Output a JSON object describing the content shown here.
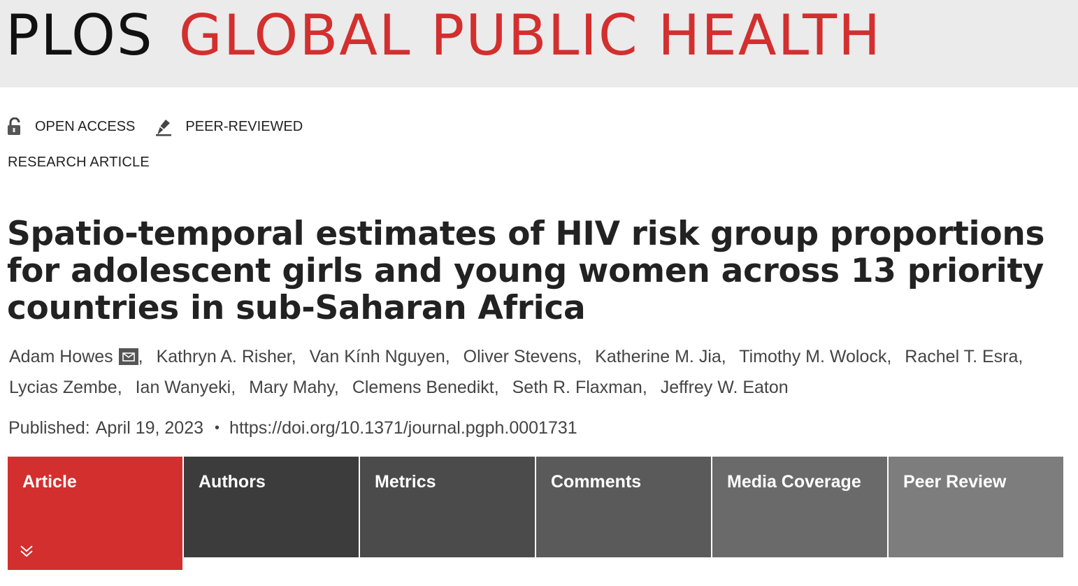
{
  "header": {
    "brand_plos": "PLOS",
    "brand_journal": "GLOBAL PUBLIC HEALTH"
  },
  "badges": [
    {
      "label": "OPEN ACCESS",
      "icon": "open-lock-icon"
    },
    {
      "label": "PEER-REVIEWED",
      "icon": "pen-nib-icon"
    }
  ],
  "article_type": "RESEARCH ARTICLE",
  "title": "Spatio-temporal estimates of HIV risk group proportions for adolescent girls and young women across 13 priority countries in sub-Saharan Africa",
  "authors": [
    "Adam Howes",
    "Kathryn A. Risher",
    "Van Kính Nguyen",
    "Oliver Stevens",
    "Katherine M. Jia",
    "Timothy M. Wolock",
    "Rachel T. Esra",
    "Lycias Zembe",
    "Ian Wanyeki",
    "Mary Mahy",
    "Clemens Benedikt",
    "Seth R. Flaxman",
    "Jeffrey W. Eaton"
  ],
  "published": {
    "label": "Published:",
    "date": "April 19, 2023",
    "bullet": "•",
    "doi": "https://doi.org/10.1371/journal.pgph.0001731"
  },
  "tabs": [
    {
      "label": "Article",
      "active": true
    },
    {
      "label": "Authors"
    },
    {
      "label": "Metrics"
    },
    {
      "label": "Comments"
    },
    {
      "label": "Media Coverage"
    },
    {
      "label": "Peer Review"
    }
  ],
  "colors": {
    "brand_red": "#d32f2f",
    "banner_bg": "#ebebeb"
  }
}
